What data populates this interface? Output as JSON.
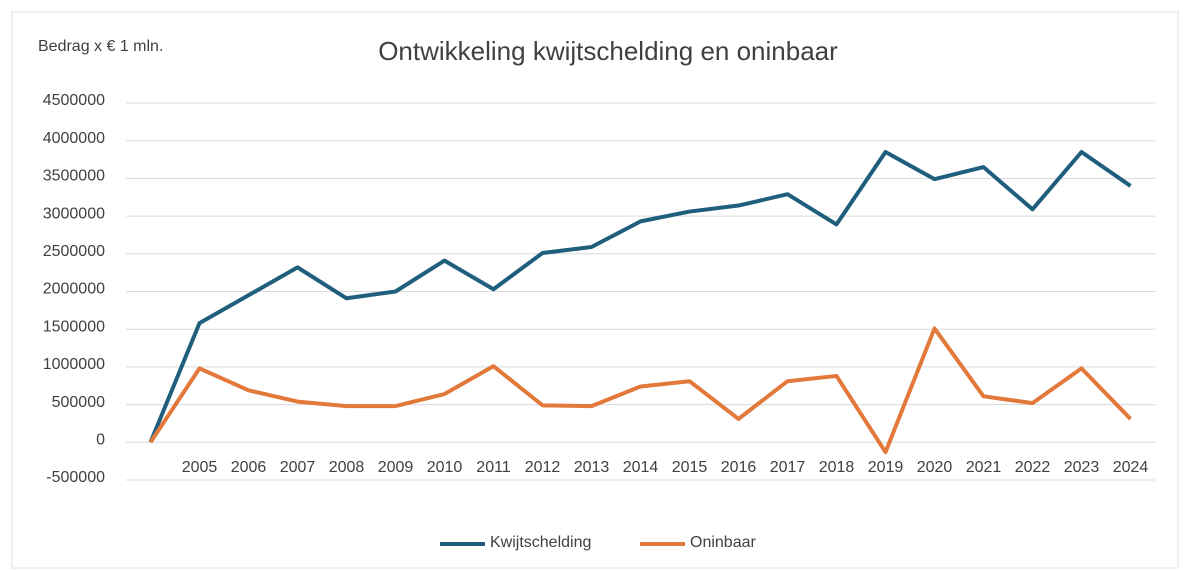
{
  "chart_data": {
    "type": "line",
    "title": "Ontwikkeling kwijtschelding en oninbaar",
    "y_label": "Bedrag x  € 1 mln.",
    "categories": [
      null,
      "2005",
      "2006",
      "2007",
      "2008",
      "2009",
      "2010",
      "2011",
      "2012",
      "2013",
      "2014",
      "2015",
      "2016",
      "2017",
      "2018",
      "2019",
      "2020",
      "2021",
      "2022",
      "2023",
      "2024"
    ],
    "series": [
      {
        "name": "Kwijtschelding",
        "color": "#1f5f7d",
        "values": [
          0,
          1580000,
          1950000,
          2320000,
          1910000,
          2000000,
          2410000,
          2030000,
          2510000,
          2590000,
          2930000,
          3060000,
          3140000,
          3290000,
          2890000,
          3850000,
          3490000,
          3650000,
          3090000,
          3850000,
          3400000
        ]
      },
      {
        "name": "Oninbaar",
        "color": "#e2793a",
        "values": [
          0,
          980000,
          690000,
          540000,
          480000,
          480000,
          640000,
          1010000,
          490000,
          480000,
          740000,
          810000,
          310000,
          810000,
          880000,
          -130000,
          1510000,
          610000,
          520000,
          980000,
          310000
        ]
      }
    ],
    "ylim": [
      -500000,
      4500000
    ],
    "yticks": [
      -500000,
      0,
      500000,
      1000000,
      1500000,
      2000000,
      2500000,
      3000000,
      3500000,
      4000000,
      4500000
    ],
    "grid": true,
    "legend": "bottom"
  }
}
